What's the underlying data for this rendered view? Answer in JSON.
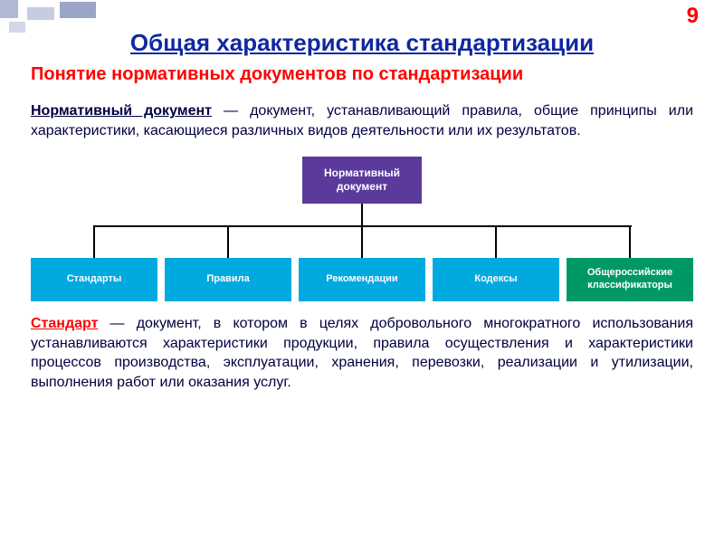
{
  "page_number": "9",
  "title": "Общая характеристика стандартизации",
  "subtitle": "Понятие нормативных документов по стандартизации",
  "definition1": {
    "term": "Нормативный документ",
    "text": " — документ, устанавливающий правила, общие принципы или характеристики, касающиеся различных видов деятельности или их результатов."
  },
  "diagram": {
    "root": {
      "label": "Нормативный документ",
      "bg_color": "#5b3a9b"
    },
    "children": [
      {
        "label": "Стандарты",
        "bg_color": "#00a9e0"
      },
      {
        "label": "Правила",
        "bg_color": "#00a9e0"
      },
      {
        "label": "Рекомендации",
        "bg_color": "#00a9e0"
      },
      {
        "label": "Кодексы",
        "bg_color": "#00a9e0"
      },
      {
        "label": "Общероссийские классификаторы",
        "bg_color": "#009966"
      }
    ],
    "connector_color": "#000000",
    "root_height": 52,
    "child_height": 48,
    "total_height": 160
  },
  "definition2": {
    "term": "Стандарт",
    "text": " — документ, в котором в целях добровольного многократного использования устанавливаются характеристики продукции, правила осуществления и характеристики процессов производства, эксплуатации, хранения, перевозки, реализации и утилизации, выполнения работ или оказания услуг."
  },
  "colors": {
    "title": "#1028a0",
    "subtitle": "#ff0000",
    "body_text": "#000040",
    "page_num": "#ff0000",
    "term2": "#ff0000"
  }
}
